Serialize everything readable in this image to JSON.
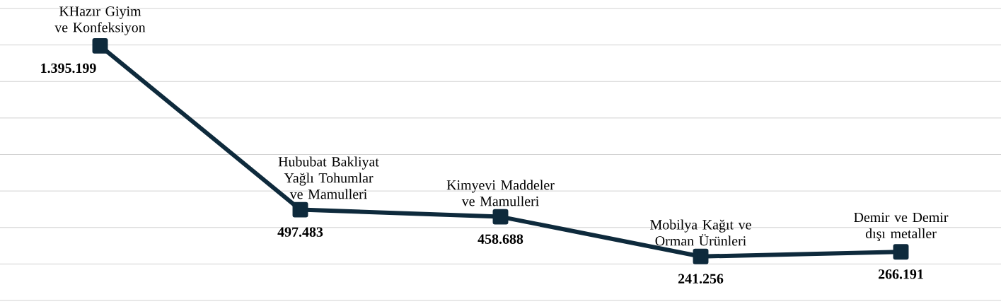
{
  "chart_data": {
    "type": "line",
    "categories": [
      "KHazır Giyim ve Konfeksiyon",
      "Hububat Bakliyat Yağlı Tohumlar ve Mamulleri",
      "Kimyevi Maddeler ve Mamulleri",
      "Mobilya Kağıt ve Orman Ürünleri",
      "Demir ve Demir dışı metaller"
    ],
    "series": [
      {
        "color": "#0e2a3c",
        "values": [
          1395199,
          497483,
          458688,
          241256,
          266191
        ],
        "value_labels": [
          "1.395.199",
          "497.483",
          "458.688",
          "241.256",
          "266.191"
        ]
      }
    ],
    "ylim": [
      0,
      1600000
    ],
    "yticks": [
      {
        "value": 0,
        "label": null
      },
      {
        "value": 200000,
        "label": null
      },
      {
        "value": 400000,
        "label": null
      },
      {
        "value": 600000,
        "label": null
      },
      {
        "value": 800000,
        "label": null
      },
      {
        "value": 1000000,
        "label": null
      },
      {
        "value": 1200000,
        "label": null
      },
      {
        "value": 1400000,
        "label": null
      },
      {
        "value": 1600000,
        "label": null
      }
    ],
    "grid": "y",
    "marker": "square",
    "line_style": "solid"
  }
}
